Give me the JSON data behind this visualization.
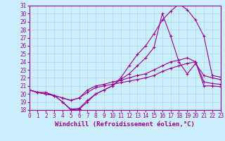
{
  "xlabel": "Windchill (Refroidissement éolien,°C)",
  "xlim": [
    0,
    23
  ],
  "ylim": [
    18,
    31
  ],
  "xticks": [
    0,
    1,
    2,
    3,
    4,
    5,
    6,
    7,
    8,
    9,
    10,
    11,
    12,
    13,
    14,
    15,
    16,
    17,
    18,
    19,
    20,
    21,
    22,
    23
  ],
  "yticks": [
    18,
    19,
    20,
    21,
    22,
    23,
    24,
    25,
    26,
    27,
    28,
    29,
    30,
    31
  ],
  "bg_color": "#cceeff",
  "line_color": "#990099",
  "grid_color": "#aadddd",
  "lines": [
    {
      "x": [
        0,
        1,
        2,
        3,
        4,
        5,
        6,
        7,
        8,
        9,
        10,
        11,
        12,
        13,
        14,
        15,
        16,
        17,
        18,
        19,
        20,
        21,
        22,
        23
      ],
      "y": [
        20.5,
        20.2,
        20.2,
        19.8,
        19.0,
        18.1,
        18.2,
        19.2,
        20.0,
        20.5,
        21.0,
        22.0,
        23.5,
        24.9,
        26.0,
        27.5,
        29.2,
        30.3,
        31.2,
        30.5,
        29.2,
        27.2,
        22.3,
        22.1
      ]
    },
    {
      "x": [
        0,
        1,
        2,
        3,
        4,
        5,
        6,
        7,
        8,
        9,
        10,
        11,
        12,
        13,
        14,
        15,
        16,
        17,
        18,
        19,
        20,
        21,
        22,
        23
      ],
      "y": [
        20.5,
        20.2,
        20.0,
        19.8,
        19.0,
        18.0,
        18.1,
        19.0,
        20.0,
        20.5,
        21.0,
        21.8,
        22.5,
        23.5,
        24.5,
        25.8,
        30.0,
        27.2,
        24.0,
        22.5,
        23.8,
        22.3,
        22.0,
        21.8
      ]
    },
    {
      "x": [
        0,
        1,
        2,
        3,
        4,
        5,
        6,
        7,
        8,
        9,
        10,
        11,
        12,
        13,
        14,
        15,
        16,
        17,
        18,
        19,
        20,
        21,
        22,
        23
      ],
      "y": [
        20.5,
        20.2,
        20.0,
        19.8,
        19.5,
        19.2,
        19.5,
        20.5,
        21.0,
        21.2,
        21.5,
        21.7,
        22.0,
        22.3,
        22.5,
        23.0,
        23.5,
        24.0,
        24.2,
        24.5,
        24.0,
        21.5,
        21.3,
        21.2
      ]
    },
    {
      "x": [
        0,
        1,
        2,
        3,
        4,
        5,
        6,
        7,
        8,
        9,
        10,
        11,
        12,
        13,
        14,
        15,
        16,
        17,
        18,
        19,
        20,
        21,
        22,
        23
      ],
      "y": [
        20.5,
        20.2,
        20.0,
        19.8,
        19.5,
        19.2,
        19.5,
        20.2,
        20.8,
        21.0,
        21.2,
        21.4,
        21.6,
        21.8,
        22.0,
        22.3,
        22.8,
        23.2,
        23.5,
        23.8,
        24.0,
        21.0,
        21.0,
        20.9
      ]
    }
  ],
  "tick_fontsize": 5.5,
  "label_fontsize": 6.5
}
